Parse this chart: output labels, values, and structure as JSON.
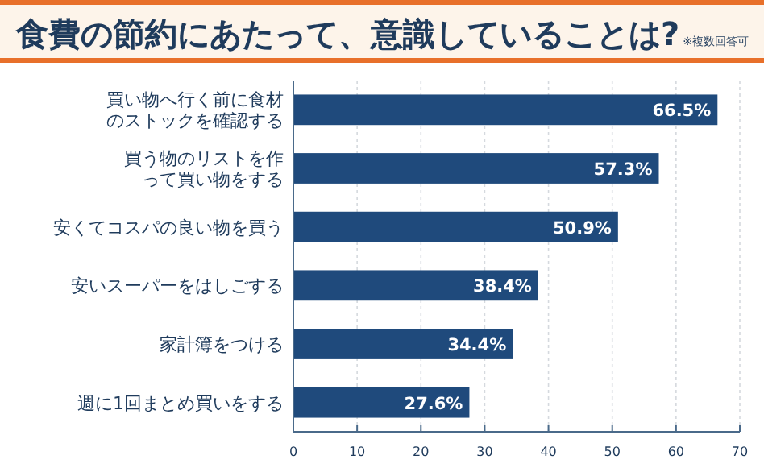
{
  "chart_data": {
    "type": "bar",
    "orientation": "horizontal",
    "title": "食費の節約にあたって、意識していることは?",
    "annotations": [
      "※複数回答可"
    ],
    "categories": [
      "買い物へ行く前に食材のストックを確認する",
      "買う物のリストを作って買い物をする",
      "安くてコスパの良い物を買う",
      "安いスーパーをはしごする",
      "家計簿をつける",
      "週に1回まとめ買いをする"
    ],
    "values": [
      66.5,
      57.3,
      50.9,
      38.4,
      34.4,
      27.6
    ],
    "value_labels": [
      "66.5%",
      "57.3%",
      "50.9%",
      "38.4%",
      "34.4%",
      "27.6%"
    ],
    "color": "#1f4a7c",
    "xlim": [
      0,
      70
    ],
    "xticks": [
      0,
      10,
      20,
      30,
      40,
      50,
      60,
      70
    ],
    "grid": "x"
  }
}
